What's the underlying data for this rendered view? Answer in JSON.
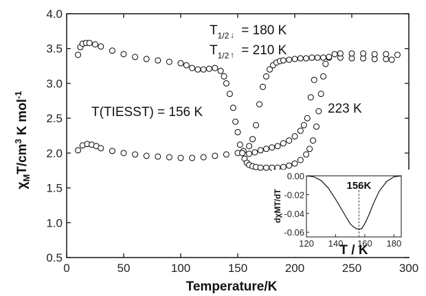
{
  "chart_data": [
    {
      "type": "scatter",
      "xlabel": "Temperature/K",
      "ylabel_parts": [
        "χ",
        "M",
        "T/cm",
        "3",
        " K mol",
        "-1"
      ],
      "xlim": [
        0,
        300
      ],
      "ylim": [
        0.5,
        4.0
      ],
      "xticks": [
        0,
        50,
        100,
        150,
        200,
        250,
        300
      ],
      "yticks": [
        0.5,
        1.0,
        1.5,
        2.0,
        2.5,
        3.0,
        3.5,
        4.0
      ],
      "series": [
        {
          "marker": "filled-square",
          "color": "#000000",
          "x": [
            10,
            14,
            18,
            22,
            26,
            30,
            40,
            50,
            60,
            70,
            80,
            90,
            100,
            110,
            120,
            130,
            140,
            150,
            155,
            160,
            163,
            166,
            169,
            172,
            175,
            178,
            181,
            184,
            187,
            190,
            195,
            200,
            205,
            210,
            215,
            220,
            225,
            230,
            240,
            250,
            260,
            270,
            280,
            285
          ],
          "y": [
            2.04,
            2.11,
            2.13,
            2.12,
            2.1,
            2.07,
            2.03,
            2.0,
            1.98,
            1.96,
            1.95,
            1.94,
            1.93,
            1.93,
            1.94,
            1.96,
            1.98,
            2.0,
            2.03,
            2.1,
            2.2,
            2.4,
            2.7,
            2.95,
            3.1,
            3.2,
            3.26,
            3.3,
            3.32,
            3.33,
            3.34,
            3.35,
            3.36,
            3.36,
            3.37,
            3.37,
            3.37,
            3.37,
            3.37,
            3.36,
            3.36,
            3.35,
            3.35,
            3.34
          ]
        },
        {
          "marker": "filled-square-warming",
          "color": "#000000",
          "x": [
            160,
            165,
            170,
            175,
            180,
            185,
            190,
            195,
            200,
            205,
            208,
            211,
            214,
            217
          ],
          "y": [
            1.99,
            2.01,
            2.04,
            2.06,
            2.08,
            2.1,
            2.14,
            2.18,
            2.24,
            2.32,
            2.4,
            2.5,
            2.8,
            3.05
          ],
          "ignored": true
        },
        {
          "marker": "open-circle",
          "color": "#000000",
          "x": [
            10,
            12,
            14,
            17,
            20,
            25,
            30,
            40,
            50,
            60,
            70,
            80,
            90,
            100,
            105,
            110,
            115,
            120,
            125,
            130,
            135,
            138,
            140,
            143,
            146,
            148,
            150,
            152,
            154,
            156,
            158,
            160,
            163,
            166,
            170,
            175,
            180,
            185,
            190,
            195,
            200,
            205,
            210,
            213,
            216,
            219,
            221,
            223,
            225,
            227,
            230,
            235,
            240,
            250,
            260,
            270,
            280,
            290
          ],
          "y": [
            3.41,
            3.52,
            3.57,
            3.58,
            3.58,
            3.56,
            3.53,
            3.47,
            3.42,
            3.38,
            3.35,
            3.33,
            3.31,
            3.29,
            3.26,
            3.22,
            3.2,
            3.2,
            3.21,
            3.22,
            3.18,
            3.1,
            3.0,
            2.85,
            2.65,
            2.45,
            2.3,
            2.12,
            2.0,
            1.92,
            1.86,
            1.83,
            1.81,
            1.8,
            1.79,
            1.79,
            1.79,
            1.79,
            1.8,
            1.82,
            1.85,
            1.9,
            1.98,
            2.06,
            2.18,
            2.38,
            2.6,
            2.85,
            3.1,
            3.28,
            3.38,
            3.42,
            3.43,
            3.43,
            3.43,
            3.42,
            3.42,
            3.41
          ]
        }
      ],
      "annotations": {
        "t_half_down_label": "T",
        "t_half_down_sub": "1/2",
        "t_half_down_arrow": "↓",
        "t_half_down_value": "= 180 K",
        "t_half_up_label": "T",
        "t_half_up_sub": "1/2",
        "t_half_up_arrow": "↑",
        "t_half_up_value": "= 210 K",
        "tiesst": "T(TIESST) = 156 K",
        "transition_223": "223 K"
      }
    },
    {
      "type": "line",
      "panel": "inset",
      "xlabel": "T / K",
      "ylabel": "dχMT/dT",
      "xlim": [
        120,
        185
      ],
      "ylim": [
        -0.065,
        0.0
      ],
      "xticks": [
        120,
        140,
        160,
        180
      ],
      "yticks": [
        0.0,
        -0.02,
        -0.04,
        -0.06
      ],
      "ytick_labels": [
        "0.00",
        "-0.02",
        "-0.04",
        "-0.06"
      ],
      "x": [
        120,
        125,
        130,
        135,
        140,
        145,
        148,
        150,
        152,
        154,
        156,
        158,
        160,
        163,
        166,
        170,
        175,
        180,
        185
      ],
      "y": [
        0.0,
        -0.001,
        -0.005,
        -0.013,
        -0.025,
        -0.038,
        -0.046,
        -0.051,
        -0.054,
        -0.056,
        -0.057,
        -0.056,
        -0.051,
        -0.041,
        -0.029,
        -0.016,
        -0.006,
        -0.001,
        0.0
      ],
      "peak_label": "156K",
      "peak_x": 156
    }
  ]
}
